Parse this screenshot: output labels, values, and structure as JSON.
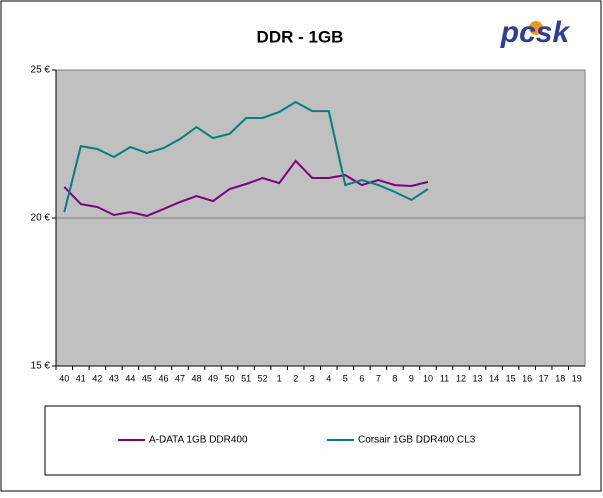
{
  "chart_data": {
    "type": "line",
    "title": "DDR - 1GB",
    "logo": "pcsk",
    "categories": [
      "40",
      "41",
      "42",
      "43",
      "44",
      "45",
      "46",
      "47",
      "48",
      "49",
      "50",
      "51",
      "52",
      "1",
      "2",
      "3",
      "4",
      "5",
      "6",
      "7",
      "8",
      "9",
      "10",
      "11",
      "12",
      "13",
      "14",
      "15",
      "16",
      "17",
      "18",
      "19"
    ],
    "series": [
      {
        "name": "A-DATA 1GB DDR400",
        "color": "#800080",
        "values": [
          21.05,
          20.47,
          20.37,
          20.1,
          20.2,
          20.07,
          20.3,
          20.54,
          20.74,
          20.57,
          20.98,
          21.15,
          21.35,
          21.18,
          21.93,
          21.35,
          21.35,
          21.45,
          21.11,
          21.28,
          21.11,
          21.08,
          21.22,
          null,
          null,
          null,
          null,
          null,
          null,
          null,
          null,
          null
        ]
      },
      {
        "name": "Corsair 1GB DDR400 CL3",
        "color": "#008080",
        "values": [
          20.2,
          22.43,
          22.33,
          22.06,
          22.4,
          22.2,
          22.36,
          22.67,
          23.07,
          22.7,
          22.84,
          23.38,
          23.38,
          23.58,
          23.92,
          23.61,
          23.61,
          21.11,
          21.28,
          21.11,
          20.88,
          20.61,
          20.98,
          null,
          null,
          null,
          null,
          null,
          null,
          null,
          null,
          null
        ]
      }
    ],
    "ylim": [
      15,
      25
    ],
    "yticks": [
      {
        "value": 15,
        "label": "15 €"
      },
      {
        "value": 20,
        "label": "20 €"
      },
      {
        "value": 25,
        "label": "25 €"
      }
    ],
    "grid": true,
    "legend": "bottom"
  }
}
